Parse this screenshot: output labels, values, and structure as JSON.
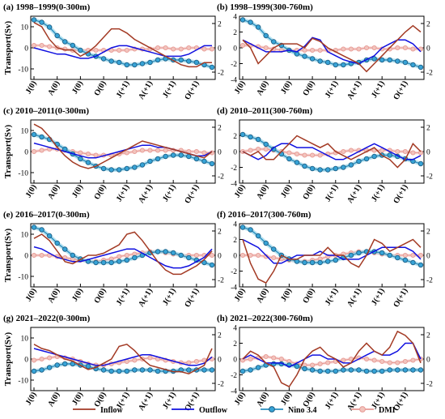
{
  "chart_data": {
    "type": "line",
    "ylabel": "Transport(Sv)",
    "month_ticks": [
      "J(0)",
      "A(0)",
      "J(0)",
      "O(0)",
      "J(+1)",
      "A(+1)",
      "J(+1)",
      "O(+1)"
    ],
    "month_tick_index": [
      0,
      3,
      6,
      9,
      12,
      15,
      18,
      21
    ],
    "n_months": 24,
    "colors": {
      "inflow": "#a33a24",
      "outflow": "#1010e0",
      "nino": "#2a8fc0",
      "nino_fill": "#37a3d6",
      "nino_glow": "#9ad6ea",
      "dmi": "#e79a95",
      "dmi_fill": "#f2c4bd",
      "dmi_glow": "#f6cfcb"
    },
    "legend": [
      {
        "key": "inflow",
        "label": "Inflow"
      },
      {
        "key": "outflow",
        "label": "Outflow"
      },
      {
        "key": "nino",
        "label": "Nino 3.4"
      },
      {
        "key": "dmi",
        "label": "DMI"
      }
    ],
    "panels": [
      {
        "title": "(a) 1998–1999(0-300m)",
        "ylim": [
          -15,
          15
        ],
        "yticks": [
          10,
          0,
          -10
        ],
        "y2lim": [
          -2.6,
          2.6
        ],
        "y2ticks": [
          2,
          0,
          -2
        ],
        "inflow": [
          12,
          10,
          4,
          0,
          -1,
          -1,
          -4,
          -2,
          1,
          5,
          9,
          9,
          7,
          4,
          2,
          0,
          -2,
          -4,
          -6,
          -8,
          -9,
          -9,
          -7,
          -7
        ],
        "outflow": [
          0,
          -1,
          -2,
          -3,
          -3,
          -4,
          -5,
          -5,
          -4,
          -2,
          0,
          1,
          1,
          0,
          -1,
          -2,
          -3,
          -4,
          -4,
          -4,
          -3,
          -1,
          1,
          1
        ],
        "nino": [
          2.3,
          2.1,
          1.7,
          1.0,
          0.5,
          0.2,
          -0.2,
          -0.5,
          -0.7,
          -0.9,
          -1.1,
          -1.2,
          -1.4,
          -1.4,
          -1.3,
          -1.2,
          -1.0,
          -0.9,
          -1.0,
          -1.0,
          -1.1,
          -1.2,
          -1.4,
          -1.6
        ],
        "dmi": [
          0.2,
          0.2,
          0.1,
          0.0,
          -0.1,
          -0.2,
          -0.2,
          -0.2,
          -0.2,
          -0.2,
          -0.2,
          -0.2,
          -0.2,
          -0.1,
          -0.1,
          -0.1,
          0.0,
          0.0,
          -0.1,
          -0.1,
          0.0,
          0.0,
          -0.1,
          -0.1
        ]
      },
      {
        "title": "(b) 1998–1999(300-760m)",
        "ylim": [
          -4,
          4
        ],
        "yticks": [
          4,
          2,
          0,
          -2,
          -4
        ],
        "y2lim": [
          -2.6,
          2.6
        ],
        "y2ticks": [
          2,
          0,
          -2
        ],
        "inflow": [
          1,
          0,
          -2,
          -1,
          0,
          0.5,
          0.5,
          0.5,
          0,
          1.2,
          0.8,
          0,
          -0.5,
          -1,
          -1.5,
          -2,
          -3,
          -2,
          -1,
          0,
          1,
          2,
          2.8,
          2
        ],
        "outflow": [
          1,
          0.5,
          0,
          -0.5,
          -0.5,
          -0.5,
          -0.3,
          -0.5,
          0.2,
          1.3,
          1,
          -0.5,
          -1,
          -1.5,
          -1.8,
          -2,
          -1.5,
          -1,
          0,
          0.5,
          1,
          1,
          0.5,
          -0.5
        ],
        "nino": [
          2.3,
          2.1,
          1.7,
          1.0,
          0.5,
          0.2,
          -0.2,
          -0.5,
          -0.7,
          -0.9,
          -1.1,
          -1.2,
          -1.4,
          -1.4,
          -1.3,
          -1.2,
          -1.0,
          -0.9,
          -1.0,
          -1.0,
          -1.1,
          -1.2,
          -1.4,
          -1.6
        ],
        "dmi": [
          0.2,
          0.2,
          0.1,
          0.0,
          -0.1,
          -0.2,
          -0.2,
          -0.2,
          -0.2,
          -0.2,
          -0.2,
          -0.2,
          -0.2,
          -0.1,
          -0.1,
          -0.1,
          0.0,
          0.0,
          -0.1,
          -0.1,
          0.0,
          0.0,
          -0.1,
          -0.1
        ]
      },
      {
        "title": "(c) 2010–2011(0-300m)",
        "ylim": [
          -15,
          15
        ],
        "yticks": [
          10,
          0,
          -10
        ],
        "y2lim": [
          -2.6,
          2.6
        ],
        "y2ticks": [
          2,
          0,
          -2
        ],
        "inflow": [
          13,
          11,
          7,
          2,
          -2,
          -5,
          -7,
          -8,
          -7,
          -5,
          -3,
          -1,
          1,
          3,
          5,
          4,
          3,
          2,
          1,
          0,
          -1,
          -2,
          -3,
          0
        ],
        "outflow": [
          4,
          3,
          2,
          1,
          0,
          -1,
          -2,
          -3,
          -3,
          -2,
          -1,
          0,
          1,
          2,
          3,
          3,
          2,
          2,
          1,
          0,
          -1,
          -2,
          -2,
          0
        ],
        "nino": [
          1.4,
          1.2,
          1.0,
          0.6,
          0.2,
          -0.2,
          -0.6,
          -0.9,
          -1.2,
          -1.4,
          -1.5,
          -1.5,
          -1.4,
          -1.3,
          -1.1,
          -0.8,
          -0.6,
          -0.4,
          -0.3,
          -0.3,
          -0.4,
          -0.6,
          -0.8,
          -1.0
        ],
        "dmi": [
          0.0,
          0.1,
          0.2,
          0.2,
          0.1,
          0.0,
          -0.1,
          -0.2,
          -0.3,
          -0.3,
          -0.3,
          -0.2,
          -0.1,
          0.0,
          0.1,
          0.1,
          0.1,
          0.1,
          0.1,
          0.1,
          0.0,
          0.0,
          -0.1,
          -0.1
        ]
      },
      {
        "title": "(d) 2010–2011(300-760m)",
        "ylim": [
          -4,
          4
        ],
        "yticks": [
          2,
          0,
          -2,
          -4
        ],
        "y2lim": [
          -2.6,
          2.6
        ],
        "y2ticks": [
          2,
          0,
          -2
        ],
        "inflow": [
          0,
          -0.5,
          0,
          -1,
          -1,
          0,
          1,
          2,
          1.5,
          1,
          0.5,
          1,
          0,
          -0.5,
          -1,
          -0.5,
          0,
          0.5,
          -0.5,
          -1,
          -2,
          -1,
          1,
          0
        ],
        "outflow": [
          0,
          -0.5,
          -1,
          -0.5,
          0.5,
          1,
          1,
          0.5,
          0.5,
          0.5,
          0,
          -0.5,
          -1,
          -1,
          -0.5,
          0,
          0.5,
          1,
          0.5,
          0,
          -0.5,
          -1,
          -1,
          -0.5
        ],
        "nino": [
          1.4,
          1.2,
          1.0,
          0.6,
          0.2,
          -0.2,
          -0.6,
          -0.9,
          -1.2,
          -1.4,
          -1.5,
          -1.5,
          -1.4,
          -1.3,
          -1.1,
          -0.8,
          -0.6,
          -0.4,
          -0.3,
          -0.3,
          -0.4,
          -0.6,
          -0.8,
          -1.0
        ],
        "dmi": [
          0.0,
          0.1,
          0.2,
          0.2,
          0.1,
          0.0,
          -0.1,
          -0.2,
          -0.3,
          -0.3,
          -0.3,
          -0.2,
          -0.1,
          0.0,
          0.1,
          0.1,
          0.1,
          0.1,
          0.1,
          0.1,
          0.0,
          0.0,
          -0.1,
          -0.1
        ]
      },
      {
        "title": "(e) 2016–2017(0-300m)",
        "ylim": [
          -15,
          15
        ],
        "yticks": [
          10,
          0,
          -10
        ],
        "y2lim": [
          -2.6,
          2.6
        ],
        "y2ticks": [
          2,
          0,
          -2
        ],
        "inflow": [
          8,
          10,
          7,
          2,
          -3,
          -4,
          -2,
          0,
          0,
          1,
          3,
          5,
          10,
          11,
          7,
          2,
          -3,
          -7,
          -9,
          -9,
          -7,
          -5,
          -2,
          2
        ],
        "outflow": [
          4,
          3,
          1,
          -1,
          -2,
          -3,
          -3,
          -2,
          -1,
          0,
          1,
          2,
          3,
          3,
          1,
          -1,
          -3,
          -5,
          -6,
          -6,
          -5,
          -3,
          -1,
          3
        ],
        "nino": [
          2.3,
          2.1,
          1.6,
          1.0,
          0.5,
          0.0,
          -0.3,
          -0.5,
          -0.6,
          -0.6,
          -0.6,
          -0.5,
          -0.4,
          -0.2,
          0.0,
          0.2,
          0.3,
          0.3,
          0.2,
          0.0,
          -0.2,
          -0.4,
          -0.6,
          -0.8
        ],
        "dmi": [
          0.0,
          0.0,
          0.0,
          -0.1,
          -0.2,
          -0.3,
          -0.4,
          -0.5,
          -0.5,
          -0.4,
          -0.3,
          -0.1,
          0.0,
          0.1,
          0.2,
          0.3,
          0.3,
          0.2,
          0.1,
          0.0,
          0.0,
          0.0,
          0.0,
          0.0
        ]
      },
      {
        "title": "(f) 2016–2017(300-760m)",
        "ylim": [
          -4,
          4
        ],
        "yticks": [
          4,
          2,
          0,
          -2,
          -4
        ],
        "y2lim": [
          -2.6,
          2.6
        ],
        "y2ticks": [
          2,
          0,
          -2
        ],
        "inflow": [
          2,
          -1,
          -3,
          -3.5,
          -2,
          0,
          -0.5,
          -0.5,
          0,
          0,
          0,
          1,
          0,
          0,
          -1,
          -1.5,
          0,
          2,
          1.5,
          0.5,
          1,
          1.5,
          2,
          1
        ],
        "outflow": [
          2,
          1.5,
          1,
          0,
          -1,
          -1,
          -0.5,
          0,
          0,
          0,
          0.5,
          0,
          0,
          -0.5,
          -0.5,
          -0.5,
          0,
          0.5,
          1,
          1,
          1,
          1,
          0.5,
          -0.5
        ],
        "nino": [
          2.3,
          2.1,
          1.6,
          1.0,
          0.5,
          0.0,
          -0.3,
          -0.5,
          -0.6,
          -0.6,
          -0.6,
          -0.5,
          -0.4,
          -0.2,
          0.0,
          0.2,
          0.3,
          0.3,
          0.2,
          0.0,
          -0.2,
          -0.4,
          -0.6,
          -0.8
        ],
        "dmi": [
          0.0,
          0.0,
          0.0,
          -0.1,
          -0.2,
          -0.3,
          -0.4,
          -0.5,
          -0.5,
          -0.4,
          -0.3,
          -0.1,
          0.0,
          0.1,
          0.2,
          0.3,
          0.3,
          0.2,
          0.1,
          0.0,
          0.0,
          0.0,
          0.0,
          0.0
        ]
      },
      {
        "title": "(g) 2021–2022(0-300m)",
        "ylim": [
          -15,
          15
        ],
        "yticks": [
          10,
          0,
          -10
        ],
        "y2lim": [
          -2.6,
          2.6
        ],
        "y2ticks": [
          2,
          0,
          -2
        ],
        "inflow": [
          7,
          5,
          4,
          2,
          0,
          -1,
          -3,
          -5,
          -4,
          -2,
          0,
          6,
          7,
          4,
          0,
          -3,
          -4,
          -5,
          -6,
          -6,
          -7,
          -5,
          -3,
          5
        ],
        "outflow": [
          5,
          4,
          3,
          2,
          1,
          0,
          -1,
          -2,
          -3,
          -3,
          -2,
          -1,
          0,
          1,
          2,
          2,
          1,
          0,
          -1,
          -2,
          -3,
          -3,
          -2,
          1
        ],
        "nino": [
          -1.0,
          -0.9,
          -0.7,
          -0.5,
          -0.4,
          -0.4,
          -0.5,
          -0.6,
          -0.8,
          -0.9,
          -1.0,
          -1.0,
          -1.0,
          -0.9,
          -0.9,
          -0.9,
          -1.0,
          -1.0,
          -1.0,
          -0.9,
          -0.9,
          -0.9,
          -0.9,
          -0.9
        ],
        "dmi": [
          -0.1,
          0.0,
          0.1,
          0.2,
          0.1,
          0.0,
          -0.2,
          -0.4,
          -0.5,
          -0.5,
          -0.4,
          -0.3,
          -0.2,
          -0.1,
          0.0,
          0.1,
          0.0,
          -0.1,
          -0.2,
          -0.3,
          -0.3,
          -0.2,
          -0.1,
          0.0
        ]
      },
      {
        "title": "(h) 2021–2022(300-760m)",
        "ylim": [
          -4,
          4
        ],
        "yticks": [
          4,
          2,
          0,
          -2,
          -4
        ],
        "y2lim": [
          -2.6,
          2.6
        ],
        "y2ticks": [
          2,
          0,
          -2
        ],
        "inflow": [
          0,
          1,
          0.5,
          -0.5,
          -1,
          -3,
          -3.5,
          -2,
          0,
          1,
          1.5,
          0.5,
          0,
          -1,
          -0.5,
          1,
          2,
          1,
          0.5,
          1.5,
          3.5,
          3,
          2,
          -0.5
        ],
        "outflow": [
          0,
          0.5,
          0,
          -0.5,
          -0.5,
          -0.5,
          -1,
          -0.5,
          0,
          0.5,
          0.5,
          0,
          0,
          -0.5,
          -0.5,
          0,
          0.5,
          1,
          0.5,
          0.5,
          1,
          2,
          2,
          0
        ],
        "nino": [
          -1.0,
          -0.9,
          -0.7,
          -0.5,
          -0.4,
          -0.4,
          -0.5,
          -0.6,
          -0.8,
          -0.9,
          -1.0,
          -1.0,
          -1.0,
          -0.9,
          -0.9,
          -0.9,
          -1.0,
          -1.0,
          -1.0,
          -0.9,
          -0.9,
          -0.9,
          -0.9,
          -0.9
        ],
        "dmi": [
          -0.1,
          0.0,
          0.1,
          0.2,
          0.1,
          0.0,
          -0.2,
          -0.4,
          -0.5,
          -0.5,
          -0.4,
          -0.3,
          -0.2,
          -0.1,
          0.0,
          0.1,
          0.0,
          -0.1,
          -0.2,
          -0.3,
          -0.3,
          -0.2,
          -0.1,
          0.0
        ]
      }
    ]
  }
}
